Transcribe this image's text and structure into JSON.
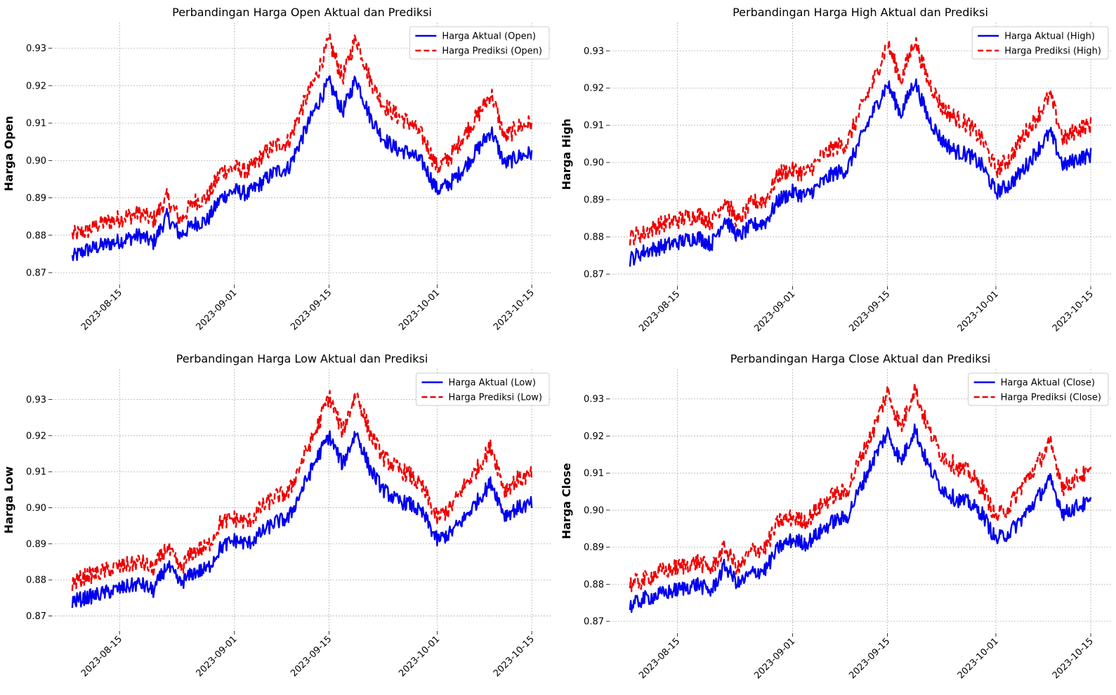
{
  "chart_data": [
    {
      "type": "line",
      "title": "Perbandingan Harga Open Aktual dan Prediksi",
      "xlabel": "",
      "ylabel": "Harga Open",
      "x_ticks": [
        "2023-08-15",
        "2023-09-01",
        "2023-09-15",
        "2023-10-01",
        "2023-10-15"
      ],
      "y_ticks": [
        "0.87",
        "0.88",
        "0.89",
        "0.90",
        "0.91",
        "0.92",
        "0.93"
      ],
      "xlim": [
        "2023-08-05",
        "2023-10-18"
      ],
      "ylim": [
        0.8668,
        0.9369
      ],
      "grid": true,
      "legend": "top-right",
      "x": [
        "2023-08-08",
        "2023-08-10",
        "2023-08-12",
        "2023-08-14",
        "2023-08-16",
        "2023-08-18",
        "2023-08-20",
        "2023-08-22",
        "2023-08-24",
        "2023-08-26",
        "2023-08-28",
        "2023-08-30",
        "2023-09-01",
        "2023-09-03",
        "2023-09-05",
        "2023-09-07",
        "2023-09-09",
        "2023-09-11",
        "2023-09-13",
        "2023-09-15",
        "2023-09-17",
        "2023-09-19",
        "2023-09-21",
        "2023-09-23",
        "2023-09-25",
        "2023-09-27",
        "2023-09-29",
        "2023-10-01",
        "2023-10-03",
        "2023-10-05",
        "2023-10-07",
        "2023-10-09",
        "2023-10-11",
        "2023-10-13",
        "2023-10-15"
      ],
      "series": [
        {
          "name": "Harga Aktual (Open)",
          "color": "#0000ee",
          "dash": "solid",
          "values": [
            0.874,
            0.876,
            0.877,
            0.878,
            0.879,
            0.88,
            0.878,
            0.885,
            0.88,
            0.883,
            0.884,
            0.89,
            0.892,
            0.891,
            0.894,
            0.897,
            0.898,
            0.906,
            0.914,
            0.921,
            0.913,
            0.922,
            0.912,
            0.906,
            0.903,
            0.902,
            0.899,
            0.892,
            0.894,
            0.898,
            0.903,
            0.908,
            0.899,
            0.901,
            0.902
          ]
        },
        {
          "name": "Harga Prediksi (Open)",
          "color": "#ee0000",
          "dash": "dashed",
          "values": [
            0.88,
            0.881,
            0.883,
            0.884,
            0.885,
            0.886,
            0.884,
            0.89,
            0.884,
            0.889,
            0.89,
            0.897,
            0.898,
            0.897,
            0.901,
            0.904,
            0.905,
            0.914,
            0.922,
            0.932,
            0.922,
            0.933,
            0.922,
            0.915,
            0.912,
            0.91,
            0.906,
            0.898,
            0.901,
            0.907,
            0.912,
            0.918,
            0.906,
            0.909,
            0.91
          ]
        }
      ]
    },
    {
      "type": "line",
      "title": "Perbandingan Harga High Aktual dan Prediksi",
      "xlabel": "",
      "ylabel": "Harga High",
      "x_ticks": [
        "2023-08-15",
        "2023-09-01",
        "2023-09-15",
        "2023-10-01",
        "2023-10-15"
      ],
      "y_ticks": [
        "0.87",
        "0.88",
        "0.89",
        "0.90",
        "0.91",
        "0.92",
        "0.93"
      ],
      "xlim": [
        "2023-08-05",
        "2023-10-18"
      ],
      "ylim": [
        0.8668,
        0.9376
      ],
      "grid": true,
      "legend": "top-right",
      "x": [
        "2023-08-08",
        "2023-08-10",
        "2023-08-12",
        "2023-08-14",
        "2023-08-16",
        "2023-08-18",
        "2023-08-20",
        "2023-08-22",
        "2023-08-24",
        "2023-08-26",
        "2023-08-28",
        "2023-08-30",
        "2023-09-01",
        "2023-09-03",
        "2023-09-05",
        "2023-09-07",
        "2023-09-09",
        "2023-09-11",
        "2023-09-13",
        "2023-09-15",
        "2023-09-17",
        "2023-09-19",
        "2023-09-21",
        "2023-09-23",
        "2023-09-25",
        "2023-09-27",
        "2023-09-29",
        "2023-10-01",
        "2023-10-03",
        "2023-10-05",
        "2023-10-07",
        "2023-10-09",
        "2023-10-11",
        "2023-10-13",
        "2023-10-15"
      ],
      "series": [
        {
          "name": "Harga Aktual (High)",
          "color": "#0000ee",
          "dash": "solid",
          "values": [
            0.874,
            0.876,
            0.877,
            0.878,
            0.879,
            0.88,
            0.878,
            0.885,
            0.88,
            0.883,
            0.884,
            0.89,
            0.892,
            0.891,
            0.894,
            0.897,
            0.898,
            0.906,
            0.914,
            0.921,
            0.913,
            0.922,
            0.912,
            0.906,
            0.903,
            0.902,
            0.899,
            0.892,
            0.894,
            0.898,
            0.903,
            0.908,
            0.899,
            0.901,
            0.902
          ]
        },
        {
          "name": "Harga Prediksi (High)",
          "color": "#ee0000",
          "dash": "dashed",
          "values": [
            0.88,
            0.881,
            0.883,
            0.884,
            0.885,
            0.886,
            0.884,
            0.89,
            0.884,
            0.889,
            0.89,
            0.897,
            0.898,
            0.897,
            0.901,
            0.904,
            0.905,
            0.914,
            0.922,
            0.932,
            0.922,
            0.933,
            0.922,
            0.915,
            0.912,
            0.91,
            0.906,
            0.898,
            0.901,
            0.907,
            0.912,
            0.918,
            0.906,
            0.909,
            0.91
          ]
        }
      ]
    },
    {
      "type": "line",
      "title": "Perbandingan Harga Low Aktual dan Prediksi",
      "xlabel": "",
      "ylabel": "Harga Low",
      "x_ticks": [
        "2023-08-15",
        "2023-09-01",
        "2023-09-15",
        "2023-10-01",
        "2023-10-15"
      ],
      "y_ticks": [
        "0.87",
        "0.88",
        "0.89",
        "0.90",
        "0.91",
        "0.92",
        "0.93"
      ],
      "xlim": [
        "2023-08-05",
        "2023-10-18"
      ],
      "ylim": [
        0.8658,
        0.9385
      ],
      "grid": true,
      "legend": "top-right",
      "x": [
        "2023-08-08",
        "2023-08-10",
        "2023-08-12",
        "2023-08-14",
        "2023-08-16",
        "2023-08-18",
        "2023-08-20",
        "2023-08-22",
        "2023-08-24",
        "2023-08-26",
        "2023-08-28",
        "2023-08-30",
        "2023-09-01",
        "2023-09-03",
        "2023-09-05",
        "2023-09-07",
        "2023-09-09",
        "2023-09-11",
        "2023-09-13",
        "2023-09-15",
        "2023-09-17",
        "2023-09-19",
        "2023-09-21",
        "2023-09-23",
        "2023-09-25",
        "2023-09-27",
        "2023-09-29",
        "2023-10-01",
        "2023-10-03",
        "2023-10-05",
        "2023-10-07",
        "2023-10-09",
        "2023-10-11",
        "2023-10-13",
        "2023-10-15"
      ],
      "series": [
        {
          "name": "Harga Aktual (Low)",
          "color": "#0000ee",
          "dash": "solid",
          "values": [
            0.874,
            0.875,
            0.876,
            0.877,
            0.878,
            0.879,
            0.877,
            0.884,
            0.879,
            0.882,
            0.883,
            0.889,
            0.891,
            0.89,
            0.893,
            0.896,
            0.897,
            0.905,
            0.913,
            0.92,
            0.912,
            0.921,
            0.911,
            0.905,
            0.902,
            0.901,
            0.898,
            0.891,
            0.893,
            0.897,
            0.902,
            0.907,
            0.898,
            0.9,
            0.901
          ]
        },
        {
          "name": "Harga Prediksi (Low)",
          "color": "#ee0000",
          "dash": "dashed",
          "values": [
            0.879,
            0.881,
            0.882,
            0.883,
            0.884,
            0.885,
            0.883,
            0.889,
            0.883,
            0.888,
            0.889,
            0.896,
            0.897,
            0.896,
            0.9,
            0.903,
            0.904,
            0.913,
            0.921,
            0.931,
            0.921,
            0.932,
            0.921,
            0.914,
            0.911,
            0.909,
            0.905,
            0.897,
            0.9,
            0.906,
            0.911,
            0.917,
            0.905,
            0.908,
            0.909
          ]
        }
      ]
    },
    {
      "type": "line",
      "title": "Perbandingan Harga Close Aktual dan Prediksi",
      "xlabel": "",
      "ylabel": "Harga Close",
      "x_ticks": [
        "2023-08-15",
        "2023-09-01",
        "2023-09-15",
        "2023-10-01",
        "2023-10-15"
      ],
      "y_ticks": [
        "0.87",
        "0.88",
        "0.89",
        "0.90",
        "0.91",
        "0.92",
        "0.93"
      ],
      "xlim": [
        "2023-08-05",
        "2023-10-18"
      ],
      "ylim": [
        0.8668,
        0.9381
      ],
      "grid": true,
      "legend": "top-right",
      "x": [
        "2023-08-08",
        "2023-08-10",
        "2023-08-12",
        "2023-08-14",
        "2023-08-16",
        "2023-08-18",
        "2023-08-20",
        "2023-08-22",
        "2023-08-24",
        "2023-08-26",
        "2023-08-28",
        "2023-08-30",
        "2023-09-01",
        "2023-09-03",
        "2023-09-05",
        "2023-09-07",
        "2023-09-09",
        "2023-09-11",
        "2023-09-13",
        "2023-09-15",
        "2023-09-17",
        "2023-09-19",
        "2023-09-21",
        "2023-09-23",
        "2023-09-25",
        "2023-09-27",
        "2023-09-29",
        "2023-10-01",
        "2023-10-03",
        "2023-10-05",
        "2023-10-07",
        "2023-10-09",
        "2023-10-11",
        "2023-10-13",
        "2023-10-15"
      ],
      "series": [
        {
          "name": "Harga Aktual (Close)",
          "color": "#0000ee",
          "dash": "solid",
          "values": [
            0.874,
            0.876,
            0.877,
            0.878,
            0.879,
            0.88,
            0.878,
            0.885,
            0.88,
            0.883,
            0.884,
            0.89,
            0.892,
            0.891,
            0.894,
            0.897,
            0.898,
            0.906,
            0.914,
            0.921,
            0.913,
            0.922,
            0.912,
            0.906,
            0.903,
            0.902,
            0.899,
            0.892,
            0.894,
            0.898,
            0.903,
            0.908,
            0.899,
            0.901,
            0.902
          ]
        },
        {
          "name": "Harga Prediksi (Close)",
          "color": "#ee0000",
          "dash": "dashed",
          "values": [
            0.88,
            0.881,
            0.883,
            0.884,
            0.885,
            0.886,
            0.884,
            0.89,
            0.884,
            0.889,
            0.89,
            0.897,
            0.898,
            0.897,
            0.901,
            0.904,
            0.905,
            0.914,
            0.922,
            0.932,
            0.922,
            0.933,
            0.922,
            0.915,
            0.912,
            0.91,
            0.906,
            0.898,
            0.901,
            0.907,
            0.912,
            0.918,
            0.906,
            0.909,
            0.91
          ]
        }
      ]
    }
  ]
}
